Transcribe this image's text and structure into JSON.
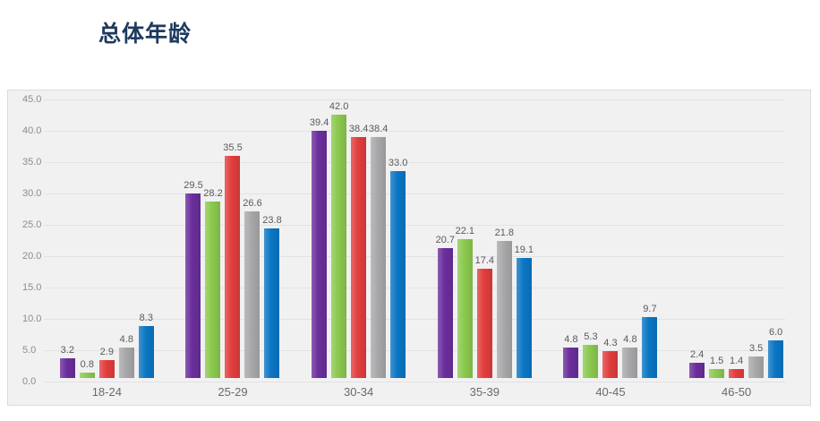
{
  "header": {
    "title": "总体年龄",
    "title_color": "#1e3a5e"
  },
  "chart_data": {
    "type": "bar",
    "title": "总体年龄",
    "categories": [
      "18-24",
      "25-29",
      "30-34",
      "35-39",
      "40-45",
      "46-50"
    ],
    "series": [
      {
        "name": "purple",
        "color": "#6a2e9c",
        "values": [
          3.2,
          29.5,
          39.4,
          20.7,
          4.8,
          2.4
        ]
      },
      {
        "name": "green",
        "color": "#8bc94e",
        "values": [
          0.8,
          28.2,
          42.0,
          22.1,
          5.3,
          1.5
        ]
      },
      {
        "name": "red",
        "color": "#e23d3d",
        "values": [
          2.9,
          35.5,
          38.4,
          17.4,
          4.3,
          1.4
        ]
      },
      {
        "name": "gray",
        "color": "#a8a8aa",
        "values": [
          4.8,
          26.6,
          38.4,
          21.8,
          4.8,
          3.5
        ]
      },
      {
        "name": "blue",
        "color": "#0b76c4",
        "values": [
          8.3,
          23.8,
          33.0,
          19.1,
          9.7,
          6.0
        ]
      }
    ],
    "yticks": [
      "45.0",
      "40.0",
      "35.0",
      "30.0",
      "25.0",
      "20.0",
      "15.0",
      "10.0",
      "5.0",
      "0.0"
    ],
    "ylim": [
      0,
      45
    ],
    "grid": true,
    "legend": "none",
    "value_labels": "one-decimal",
    "plot_bg": "#f1f1f2"
  }
}
